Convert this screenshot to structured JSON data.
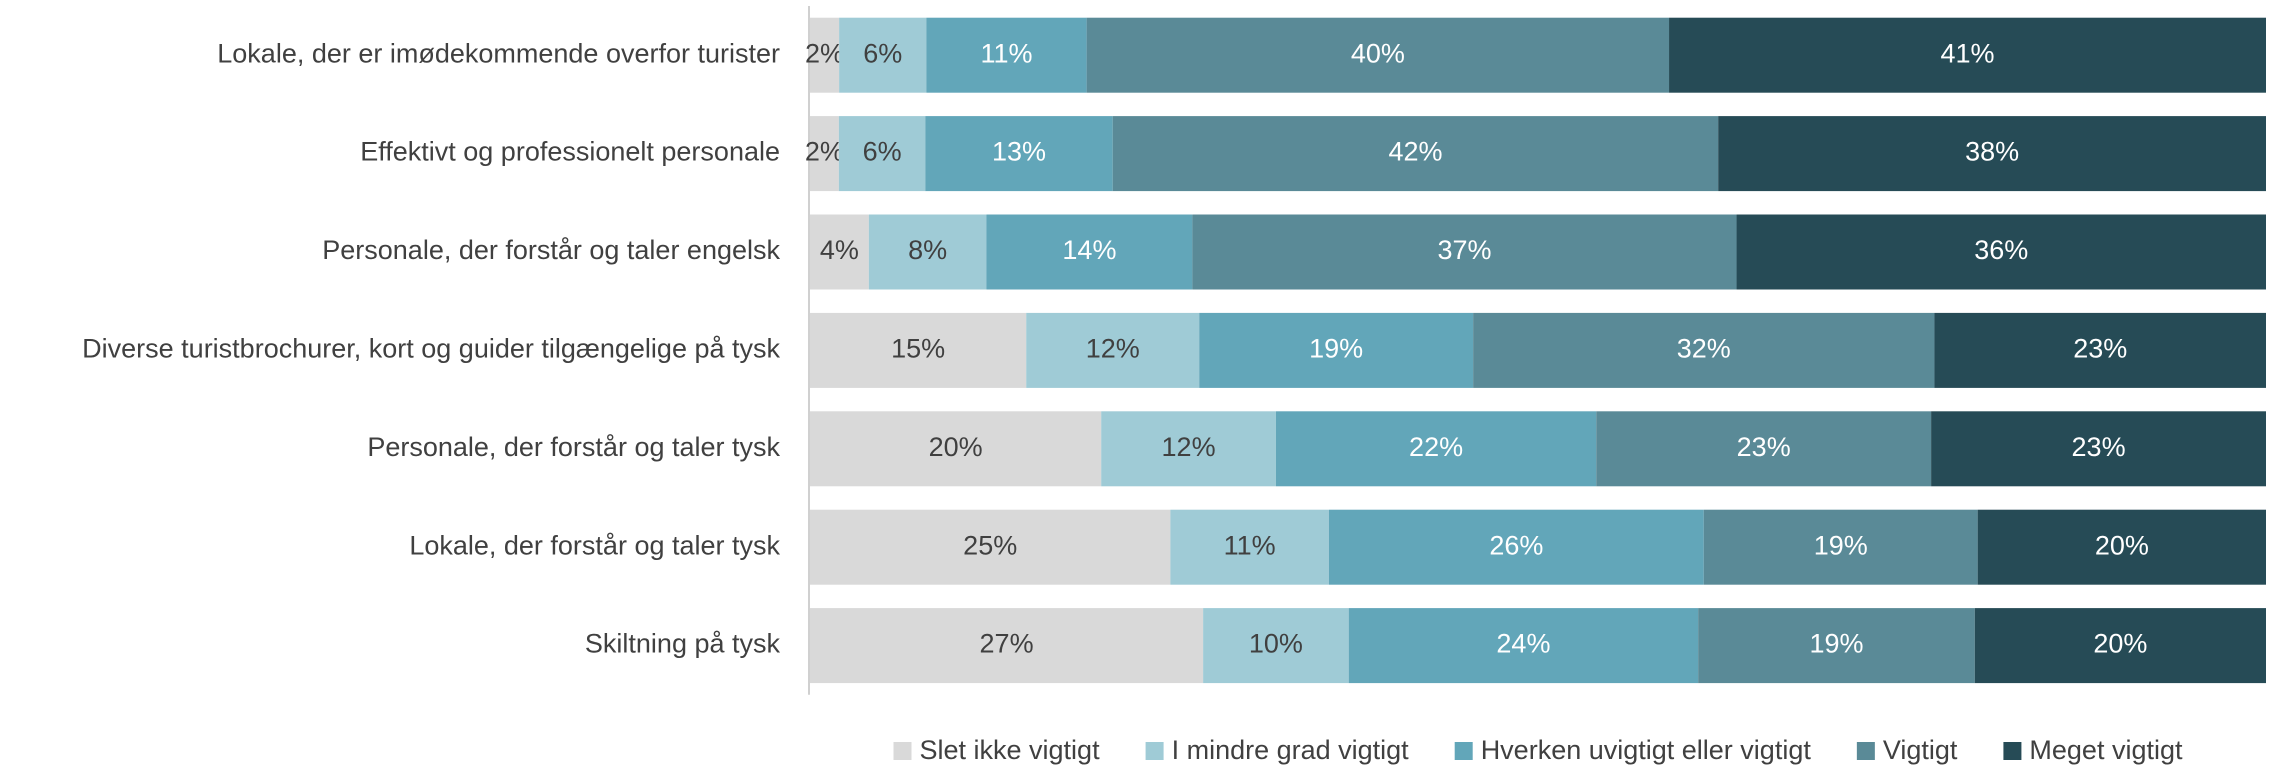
{
  "chart_data": {
    "type": "percent-stacked-hbar",
    "categories": [
      "Lokale, der er imødekommende overfor turister",
      "Effektivt og professionelt personale",
      "Personale, der forstår og taler engelsk",
      "Diverse turistbrochurer, kort og guider tilgængelige på tysk",
      "Personale, der forstår og taler tysk",
      "Lokale, der forstår og taler tysk",
      "Skiltning på tysk"
    ],
    "series": [
      {
        "name": "Slet ikke vigtigt",
        "color": "#d9d9d9",
        "values": [
          2,
          2,
          4,
          15,
          20,
          25,
          27
        ],
        "value_labels": [
          "2%",
          "2%",
          "4%",
          "15%",
          "20%",
          "25%",
          "27%"
        ]
      },
      {
        "name": "I mindre grad vigtigt",
        "color": "#9fcbd6",
        "values": [
          6,
          6,
          8,
          12,
          12,
          11,
          10
        ],
        "value_labels": [
          "6%",
          "6%",
          "8%",
          "12%",
          "12%",
          "11%",
          "10%"
        ]
      },
      {
        "name": "Hverken uvigtigt eller vigtigt",
        "color": "#62a6b9",
        "values": [
          11,
          13,
          14,
          19,
          22,
          26,
          24
        ],
        "value_labels": [
          "11%",
          "13%",
          "14%",
          "19%",
          "22%",
          "26%",
          "24%"
        ]
      },
      {
        "name": "Vigtigt",
        "color": "#5a8a97",
        "values": [
          40,
          42,
          37,
          32,
          23,
          19,
          19
        ],
        "value_labels": [
          "40%",
          "42%",
          "37%",
          "32%",
          "23%",
          "19%",
          "19%"
        ]
      },
      {
        "name": "Meget vigtigt",
        "color": "#264b56",
        "values": [
          41,
          38,
          36,
          23,
          23,
          20,
          20
        ],
        "value_labels": [
          "41%",
          "38%",
          "36%",
          "23%",
          "23%",
          "20%",
          "20%"
        ]
      }
    ],
    "legend": "bottom"
  }
}
